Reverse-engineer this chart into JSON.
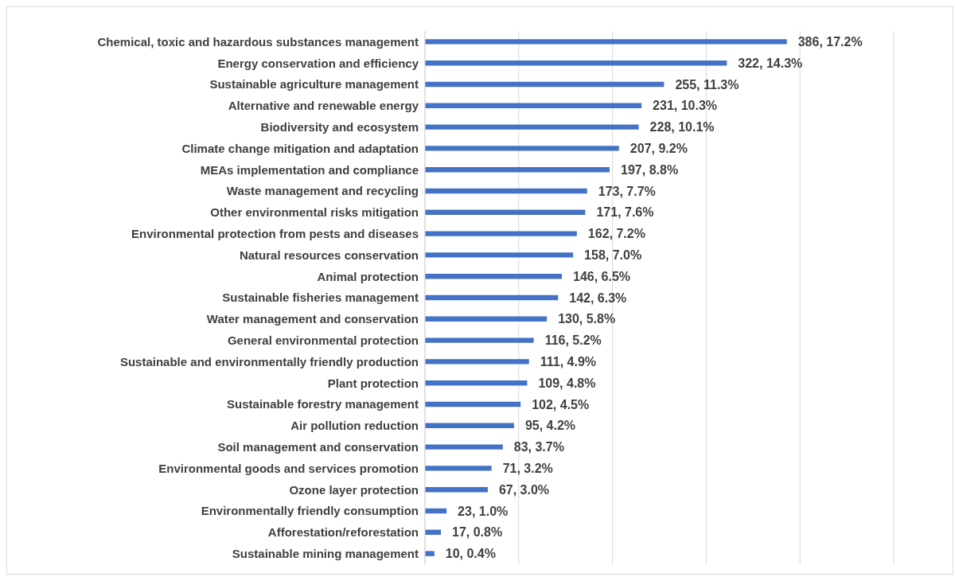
{
  "chart_data": {
    "type": "bar",
    "orientation": "horizontal",
    "categories": [
      "Chemical, toxic and hazardous substances management",
      "Energy conservation and efficiency",
      "Sustainable agriculture management",
      "Alternative and renewable energy",
      "Biodiversity and ecosystem",
      "Climate change mitigation and adaptation",
      "MEAs implementation and compliance",
      "Waste management and recycling",
      "Other environmental risks mitigation",
      "Environmental protection from pests and diseases",
      "Natural resources conservation",
      "Animal protection",
      "Sustainable fisheries management",
      "Water management and conservation",
      "General environmental protection",
      "Sustainable and environmentally friendly production",
      "Plant protection",
      "Sustainable forestry management",
      "Air pollution reduction",
      "Soil management and conservation",
      "Environmental goods and services promotion",
      "Ozone layer protection",
      "Environmentally friendly consumption",
      "Afforestation/reforestation",
      "Sustainable mining management"
    ],
    "values": [
      386,
      322,
      255,
      231,
      228,
      207,
      197,
      173,
      171,
      162,
      158,
      146,
      142,
      130,
      116,
      111,
      109,
      102,
      95,
      83,
      71,
      67,
      23,
      17,
      10
    ],
    "value_labels": [
      "386, 17.2%",
      "322, 14.3%",
      "255, 11.3%",
      "231, 10.3%",
      "228, 10.1%",
      "207, 9.2%",
      "197, 8.8%",
      "173, 7.7%",
      "171, 7.6%",
      "162, 7.2%",
      "158, 7.0%",
      "146, 6.5%",
      "142, 6.3%",
      "130, 5.8%",
      "116, 5.2%",
      "111, 4.9%",
      "109, 4.8%",
      "102, 4.5%",
      "95, 4.2%",
      "83, 3.7%",
      "71, 3.2%",
      "67, 3.0%",
      "23, 1.0%",
      "17, 0.8%",
      "10, 0.4%"
    ],
    "color": "#4472c4",
    "xlim": [
      0,
      500
    ],
    "xticks": [
      {
        "value": 0,
        "label": null
      },
      {
        "value": 100,
        "label": null
      },
      {
        "value": 200,
        "label": null
      },
      {
        "value": 300,
        "label": null
      },
      {
        "value": 400,
        "label": null
      },
      {
        "value": 500,
        "label": null
      }
    ],
    "grid": "x",
    "tick_labels": "y"
  }
}
